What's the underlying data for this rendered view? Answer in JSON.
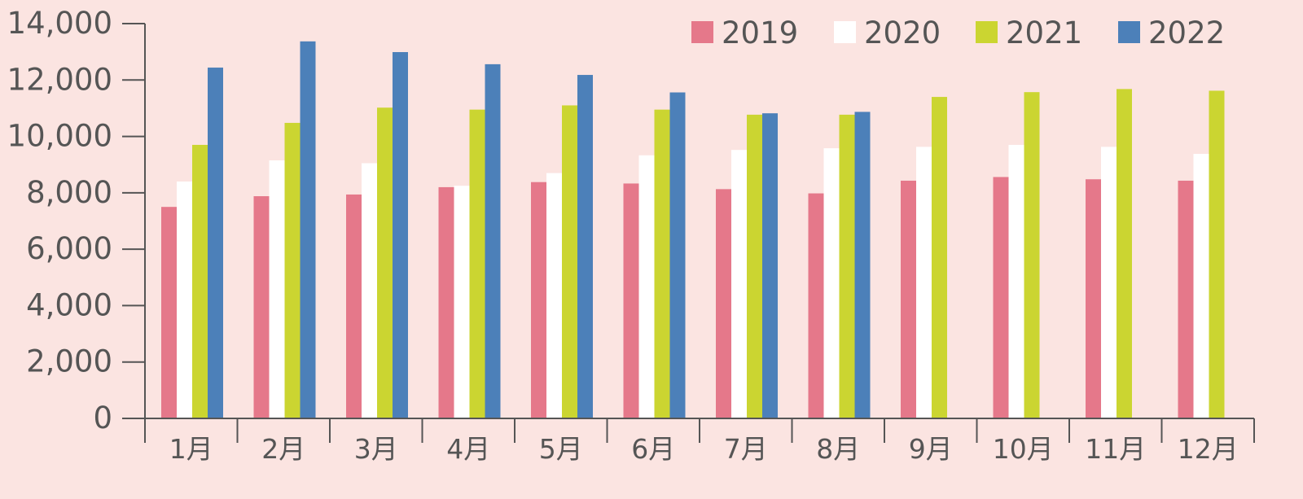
{
  "chart_data": {
    "type": "bar",
    "categories": [
      "1月",
      "2月",
      "3月",
      "4月",
      "5月",
      "6月",
      "7月",
      "8月",
      "9月",
      "10月",
      "11月",
      "12月"
    ],
    "series": [
      {
        "name": "2019",
        "color": "#e5788a",
        "values": [
          7500,
          7880,
          7940,
          8200,
          8380,
          8330,
          8130,
          7980,
          8430,
          8560,
          8480,
          8430
        ]
      },
      {
        "name": "2020",
        "color": "#ffffff",
        "values": [
          8400,
          9150,
          9050,
          8250,
          8700,
          9330,
          9520,
          9580,
          9630,
          9700,
          9630,
          9380
        ]
      },
      {
        "name": "2021",
        "color": "#cbd531",
        "values": [
          9700,
          10480,
          11020,
          10950,
          11100,
          10950,
          10770,
          10770,
          11400,
          11570,
          11680,
          11620
        ]
      },
      {
        "name": "2022",
        "color": "#4c80b9",
        "values": [
          12440,
          13370,
          12990,
          12560,
          12180,
          11560,
          10820,
          10870,
          null,
          null,
          null,
          null
        ]
      }
    ],
    "yticks": [
      "0",
      "2,000",
      "4,000",
      "6,000",
      "8,000",
      "10,000",
      "12,000",
      "14,000"
    ],
    "ylim": [
      0,
      14000
    ],
    "title": "",
    "xlabel": "",
    "ylabel": "",
    "legend_position": "top-right",
    "grid": false,
    "axis_color": "#555555",
    "background": "#fbe4e1"
  }
}
